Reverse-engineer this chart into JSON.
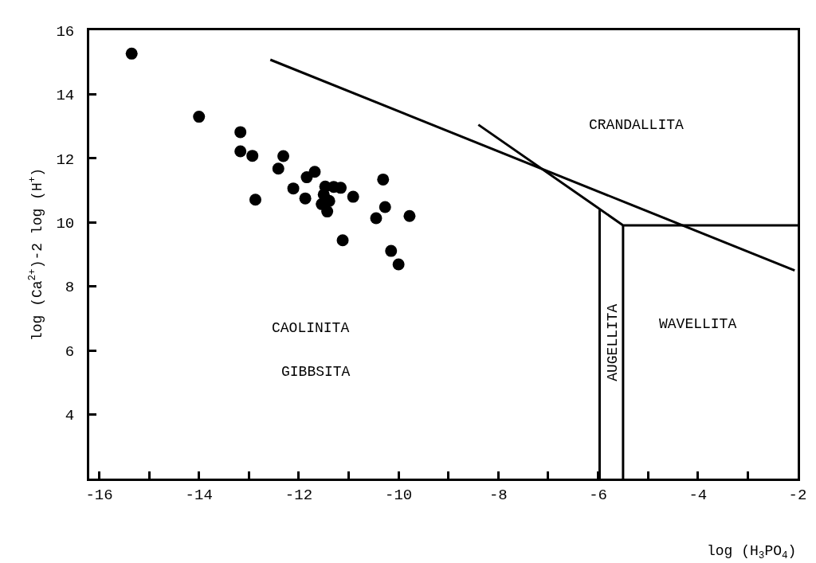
{
  "chart_data": {
    "type": "scatter",
    "xlabel": "log (H$_{3}$PO$_{4}$)",
    "ylabel": "log (Ca$^{2+}$)-2 log (H$^{+}$)",
    "series": [
      {
        "color": "#000000",
        "marker": "circle",
        "x": [
          -15.35,
          -14.0,
          -13.17,
          -13.17,
          -12.93,
          -12.87,
          -12.31,
          -12.41,
          -12.11,
          -11.68,
          -11.84,
          -11.87,
          -11.47,
          -11.3,
          -11.16,
          -11.5,
          -11.39,
          -11.54,
          -11.43,
          -10.91,
          -11.12,
          -10.31,
          -10.27,
          -10.45,
          -9.78,
          -10.15,
          -10.0
        ],
        "values": [
          15.27,
          13.3,
          12.82,
          12.22,
          12.08,
          10.71,
          12.07,
          11.68,
          11.06,
          11.58,
          11.41,
          10.75,
          11.12,
          11.11,
          11.08,
          10.87,
          10.67,
          10.57,
          10.34,
          10.8,
          9.44,
          11.34,
          10.48,
          10.13,
          10.2,
          9.11,
          8.69
        ]
      },
      {
        "type": "line",
        "color": "#000000",
        "x": [
          -12.57,
          -2.06
        ],
        "values": [
          15.08,
          8.5
        ]
      },
      {
        "type": "line",
        "color": "#000000",
        "x": [
          -8.4,
          -5.5,
          -2.0
        ],
        "values": [
          13.05,
          9.91,
          9.91
        ]
      },
      {
        "type": "line",
        "color": "#000000",
        "x": [
          -5.97,
          -5.97
        ],
        "values": [
          10.4,
          2.0
        ]
      },
      {
        "type": "line",
        "color": "#000000",
        "x": [
          -5.5,
          -5.5
        ],
        "values": [
          9.91,
          2.0
        ]
      }
    ],
    "annotations": [
      "CRANDALLITA",
      "CAOLINITA",
      "GIBBSITA",
      "WAVELLITA",
      "AUGELLITA"
    ],
    "xlim": [
      -16.2,
      -2.0
    ],
    "xticks": [
      -16,
      {
        "value": -15,
        "label": null
      },
      -14,
      {
        "value": -13,
        "label": null
      },
      -12,
      {
        "value": -11,
        "label": null
      },
      -10,
      {
        "value": -9,
        "label": null
      },
      -8,
      {
        "value": -7,
        "label": null
      },
      -6,
      {
        "value": -5,
        "label": null
      },
      -4,
      {
        "value": -3,
        "label": null
      },
      -2
    ],
    "ylim": [
      2.0,
      16.0
    ],
    "yticks": [
      4,
      6,
      8,
      10,
      12,
      14,
      16
    ],
    "line_style": "solid"
  }
}
